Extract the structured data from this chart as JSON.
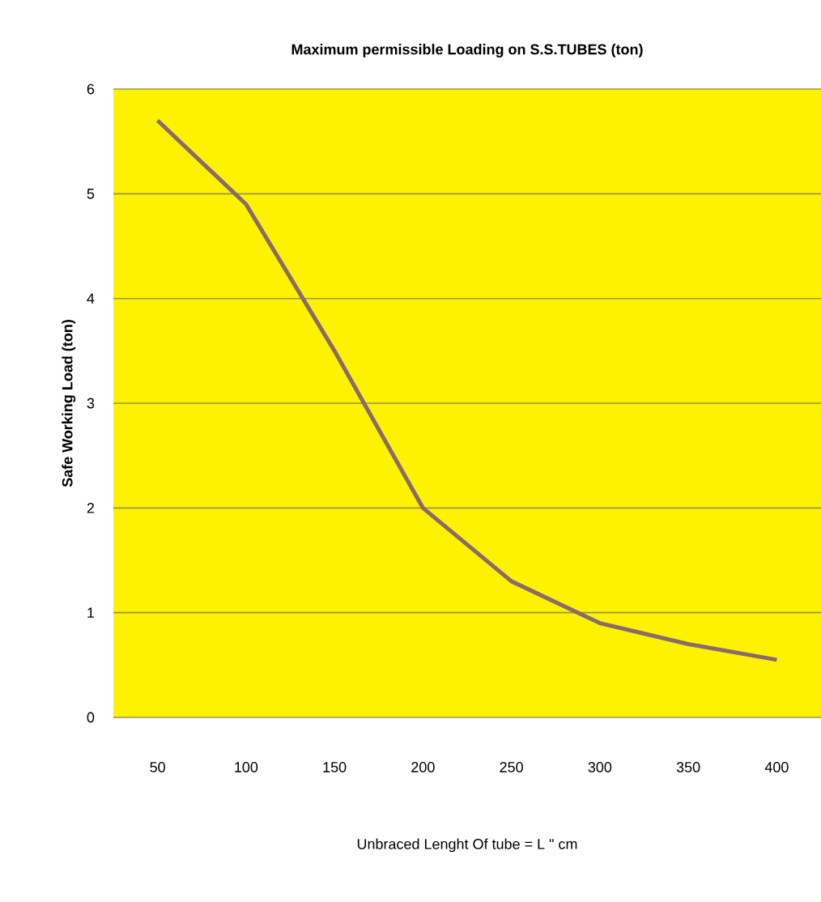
{
  "chart_data": {
    "type": "line",
    "title": "Maximum permissible Loading on  S.S.TUBES (ton)",
    "xlabel": "Unbraced Lenght  Of tube = L \" cm",
    "ylabel": "Safe Working Load (ton)",
    "categories": [
      "50",
      "100",
      "150",
      "200",
      "250",
      "300",
      "350",
      "400"
    ],
    "series": [
      {
        "color": "#8a6a6a",
        "values": [
          5.7,
          4.9,
          3.5,
          2.0,
          1.3,
          0.9,
          0.7,
          0.55
        ]
      }
    ],
    "ylim": [
      0,
      6
    ],
    "yticks": [
      0,
      1,
      2,
      3,
      4,
      5,
      6
    ],
    "grid": "y",
    "marker": "none",
    "line_style": "solid"
  }
}
